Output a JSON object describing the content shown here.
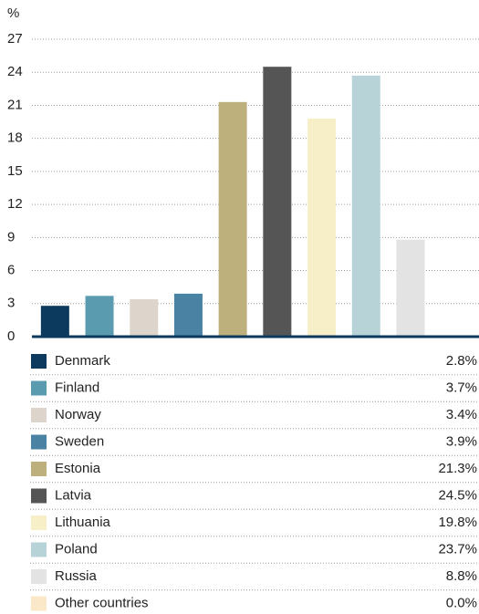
{
  "chart_data": {
    "type": "bar",
    "y_label": "%",
    "categories": [
      "Denmark",
      "Finland",
      "Norway",
      "Sweden",
      "Estonia",
      "Latvia",
      "Lithuania",
      "Poland",
      "Russia",
      "Other countries"
    ],
    "values": [
      2.8,
      3.7,
      3.4,
      3.9,
      21.3,
      24.5,
      19.8,
      23.7,
      8.8,
      0.0
    ],
    "value_labels": [
      "2.8%",
      "3.7%",
      "3.4%",
      "3.9%",
      "21.3%",
      "24.5%",
      "19.8%",
      "23.7%",
      "8.8%",
      "0.0%"
    ],
    "colors": [
      "#0b3a5e",
      "#5b9bb0",
      "#ddd5cb",
      "#4a82a3",
      "#bdb07d",
      "#555555",
      "#f7efc8",
      "#b8d3d8",
      "#e3e3e3",
      "#fbe8c8"
    ],
    "axis_color": "#0b3a5e",
    "ylim": [
      0,
      27
    ],
    "yticks": [
      0,
      3,
      6,
      9,
      12,
      15,
      18,
      21,
      24,
      27
    ],
    "grid": true
  }
}
